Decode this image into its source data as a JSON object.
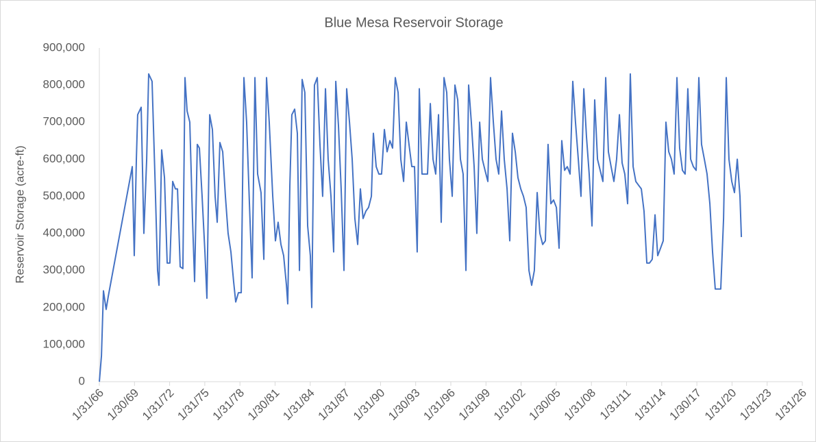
{
  "chart_data": {
    "type": "line",
    "title": "Blue Mesa Reservoir Storage",
    "y_label": "Reservoir  Storage (acre-ft)",
    "x": [
      1966.08,
      1966.26,
      1966.43,
      1966.66,
      1966.84,
      1968.89,
      1969.06,
      1969.24,
      1969.35,
      1969.65,
      1969.88,
      1970.12,
      1970.29,
      1970.58,
      1970.82,
      1971.05,
      1971.17,
      1971.4,
      1971.64,
      1971.87,
      1972.1,
      1972.34,
      1972.57,
      1972.75,
      1972.98,
      1973.21,
      1973.39,
      1973.57,
      1973.8,
      1974.03,
      1974.21,
      1974.44,
      1974.62,
      1974.85,
      1975.09,
      1975.26,
      1975.5,
      1975.73,
      1975.96,
      1976.14,
      1976.37,
      1976.61,
      1976.84,
      1977.07,
      1977.31,
      1977.54,
      1977.72,
      1977.95,
      1978.19,
      1978.42,
      1978.65,
      1978.89,
      1979.12,
      1979.36,
      1979.59,
      1979.88,
      1980.12,
      1980.35,
      1980.58,
      1980.88,
      1981.11,
      1981.34,
      1981.58,
      1981.81,
      1982.05,
      1982.16,
      1982.34,
      1982.51,
      1982.75,
      1982.98,
      1983.16,
      1983.39,
      1983.62,
      1983.86,
      1984.09,
      1984.21,
      1984.44,
      1984.68,
      1984.91,
      1985.14,
      1985.38,
      1985.61,
      1985.85,
      1986.08,
      1986.26,
      1986.49,
      1986.72,
      1986.96,
      1987.19,
      1987.43,
      1987.66,
      1987.89,
      1988.13,
      1988.36,
      1988.59,
      1988.83,
      1989.06,
      1989.3,
      1989.47,
      1989.71,
      1989.94,
      1990.17,
      1990.41,
      1990.64,
      1990.88,
      1991.11,
      1991.34,
      1991.58,
      1991.81,
      1992.05,
      1992.28,
      1992.51,
      1992.75,
      1992.98,
      1993.21,
      1993.39,
      1993.62,
      1993.86,
      1994.09,
      1994.33,
      1994.56,
      1994.79,
      1995.03,
      1995.26,
      1995.5,
      1995.73,
      1995.96,
      1996.2,
      1996.43,
      1996.67,
      1996.9,
      1997.13,
      1997.37,
      1997.6,
      1997.83,
      1998.07,
      1998.3,
      1998.54,
      1998.77,
      1999.0,
      1999.24,
      1999.47,
      1999.71,
      1999.94,
      2000.17,
      2000.41,
      2000.64,
      2000.88,
      2001.11,
      2001.34,
      2001.58,
      2001.81,
      2002.05,
      2002.28,
      2002.51,
      2002.75,
      2002.98,
      2003.21,
      2003.45,
      2003.68,
      2003.92,
      2004.15,
      2004.38,
      2004.62,
      2004.85,
      2005.09,
      2005.32,
      2005.55,
      2005.79,
      2006.02,
      2006.26,
      2006.49,
      2006.72,
      2006.96,
      2007.19,
      2007.43,
      2007.66,
      2007.89,
      2008.13,
      2008.36,
      2008.6,
      2008.83,
      2009.06,
      2009.3,
      2009.53,
      2009.76,
      2010.0,
      2010.23,
      2010.47,
      2010.7,
      2010.93,
      2011.17,
      2011.4,
      2011.64,
      2011.87,
      2012.1,
      2012.34,
      2012.57,
      2012.81,
      2013.04,
      2013.27,
      2013.51,
      2013.74,
      2013.98,
      2014.21,
      2014.44,
      2014.68,
      2014.91,
      2015.14,
      2015.38,
      2015.61,
      2015.85,
      2016.08,
      2016.31,
      2016.55,
      2016.78,
      2017.02,
      2017.25,
      2017.48,
      2017.72,
      2017.95,
      2018.19,
      2018.42,
      2018.65,
      2018.89,
      2019.12,
      2019.36,
      2019.59,
      2019.82,
      2020.06,
      2020.29,
      2020.53,
      2020.76,
      2020.88
    ],
    "series": [
      {
        "color": "#4472c4",
        "values": [
          0,
          70000,
          245000,
          195000,
          230000,
          580000,
          340000,
          600000,
          720000,
          740000,
          400000,
          600000,
          830000,
          810000,
          560000,
          300000,
          260000,
          625000,
          550000,
          320000,
          320000,
          540000,
          520000,
          520000,
          310000,
          305000,
          820000,
          730000,
          700000,
          440000,
          270000,
          640000,
          630000,
          500000,
          350000,
          225000,
          720000,
          680000,
          500000,
          430000,
          645000,
          620000,
          500000,
          400000,
          350000,
          270000,
          215000,
          240000,
          240000,
          820000,
          700000,
          480000,
          280000,
          820000,
          560000,
          510000,
          330000,
          820000,
          700000,
          500000,
          380000,
          430000,
          370000,
          340000,
          260000,
          210000,
          530000,
          720000,
          735000,
          670000,
          300000,
          815000,
          780000,
          420000,
          340000,
          200000,
          800000,
          820000,
          640000,
          500000,
          790000,
          600000,
          500000,
          350000,
          810000,
          690000,
          520000,
          300000,
          790000,
          700000,
          600000,
          440000,
          370000,
          520000,
          440000,
          460000,
          470000,
          500000,
          670000,
          580000,
          560000,
          560000,
          680000,
          620000,
          650000,
          630000,
          820000,
          780000,
          600000,
          540000,
          700000,
          640000,
          580000,
          580000,
          350000,
          790000,
          560000,
          560000,
          560000,
          750000,
          600000,
          560000,
          720000,
          430000,
          820000,
          780000,
          600000,
          500000,
          800000,
          760000,
          600000,
          560000,
          300000,
          800000,
          700000,
          580000,
          400000,
          700000,
          600000,
          570000,
          540000,
          820000,
          700000,
          600000,
          560000,
          730000,
          600000,
          520000,
          380000,
          670000,
          620000,
          550000,
          520000,
          500000,
          470000,
          300000,
          260000,
          300000,
          510000,
          400000,
          370000,
          380000,
          640000,
          480000,
          490000,
          470000,
          360000,
          650000,
          570000,
          580000,
          560000,
          810000,
          700000,
          600000,
          500000,
          790000,
          660000,
          560000,
          420000,
          760000,
          600000,
          570000,
          540000,
          820000,
          620000,
          580000,
          540000,
          600000,
          720000,
          590000,
          560000,
          480000,
          830000,
          580000,
          540000,
          530000,
          520000,
          460000,
          320000,
          320000,
          330000,
          450000,
          340000,
          360000,
          380000,
          700000,
          620000,
          600000,
          560000,
          820000,
          630000,
          570000,
          560000,
          790000,
          600000,
          580000,
          570000,
          820000,
          640000,
          600000,
          560000,
          480000,
          350000,
          250000,
          250000,
          250000,
          440000,
          820000,
          600000,
          540000,
          510000,
          600000,
          500000,
          390000
        ]
      }
    ],
    "xlim": [
      1966.08,
      2026.08
    ],
    "xticks": [
      {
        "value": 1966.08,
        "label": "1/31/66"
      },
      {
        "value": 1969.08,
        "label": "1/30/69"
      },
      {
        "value": 1972.08,
        "label": "1/31/72"
      },
      {
        "value": 1975.08,
        "label": "1/31/75"
      },
      {
        "value": 1978.08,
        "label": "1/31/78"
      },
      {
        "value": 1981.08,
        "label": "1/30/81"
      },
      {
        "value": 1984.08,
        "label": "1/31/84"
      },
      {
        "value": 1987.08,
        "label": "1/31/87"
      },
      {
        "value": 1990.08,
        "label": "1/31/90"
      },
      {
        "value": 1993.08,
        "label": "1/30/93"
      },
      {
        "value": 1996.08,
        "label": "1/31/96"
      },
      {
        "value": 1999.08,
        "label": "1/31/99"
      },
      {
        "value": 2002.08,
        "label": "1/31/02"
      },
      {
        "value": 2005.08,
        "label": "1/30/05"
      },
      {
        "value": 2008.08,
        "label": "1/31/08"
      },
      {
        "value": 2011.08,
        "label": "1/31/11"
      },
      {
        "value": 2014.08,
        "label": "1/31/14"
      },
      {
        "value": 2017.08,
        "label": "1/30/17"
      },
      {
        "value": 2020.08,
        "label": "1/31/20"
      },
      {
        "value": 2023.08,
        "label": "1/31/23"
      },
      {
        "value": 2026.08,
        "label": "1/31/26"
      }
    ],
    "ylim": [
      0,
      900000
    ],
    "yticks": [
      0,
      {
        "value": 100000,
        "label": "100,000"
      },
      {
        "value": 200000,
        "label": "200,000"
      },
      {
        "value": 300000,
        "label": "300,000"
      },
      {
        "value": 400000,
        "label": "400,000"
      },
      {
        "value": 500000,
        "label": "500,000"
      },
      {
        "value": 600000,
        "label": "600,000"
      },
      {
        "value": 700000,
        "label": "700,000"
      },
      {
        "value": 800000,
        "label": "800,000"
      },
      {
        "value": 900000,
        "label": "900,000"
      }
    ],
    "grid": false
  }
}
